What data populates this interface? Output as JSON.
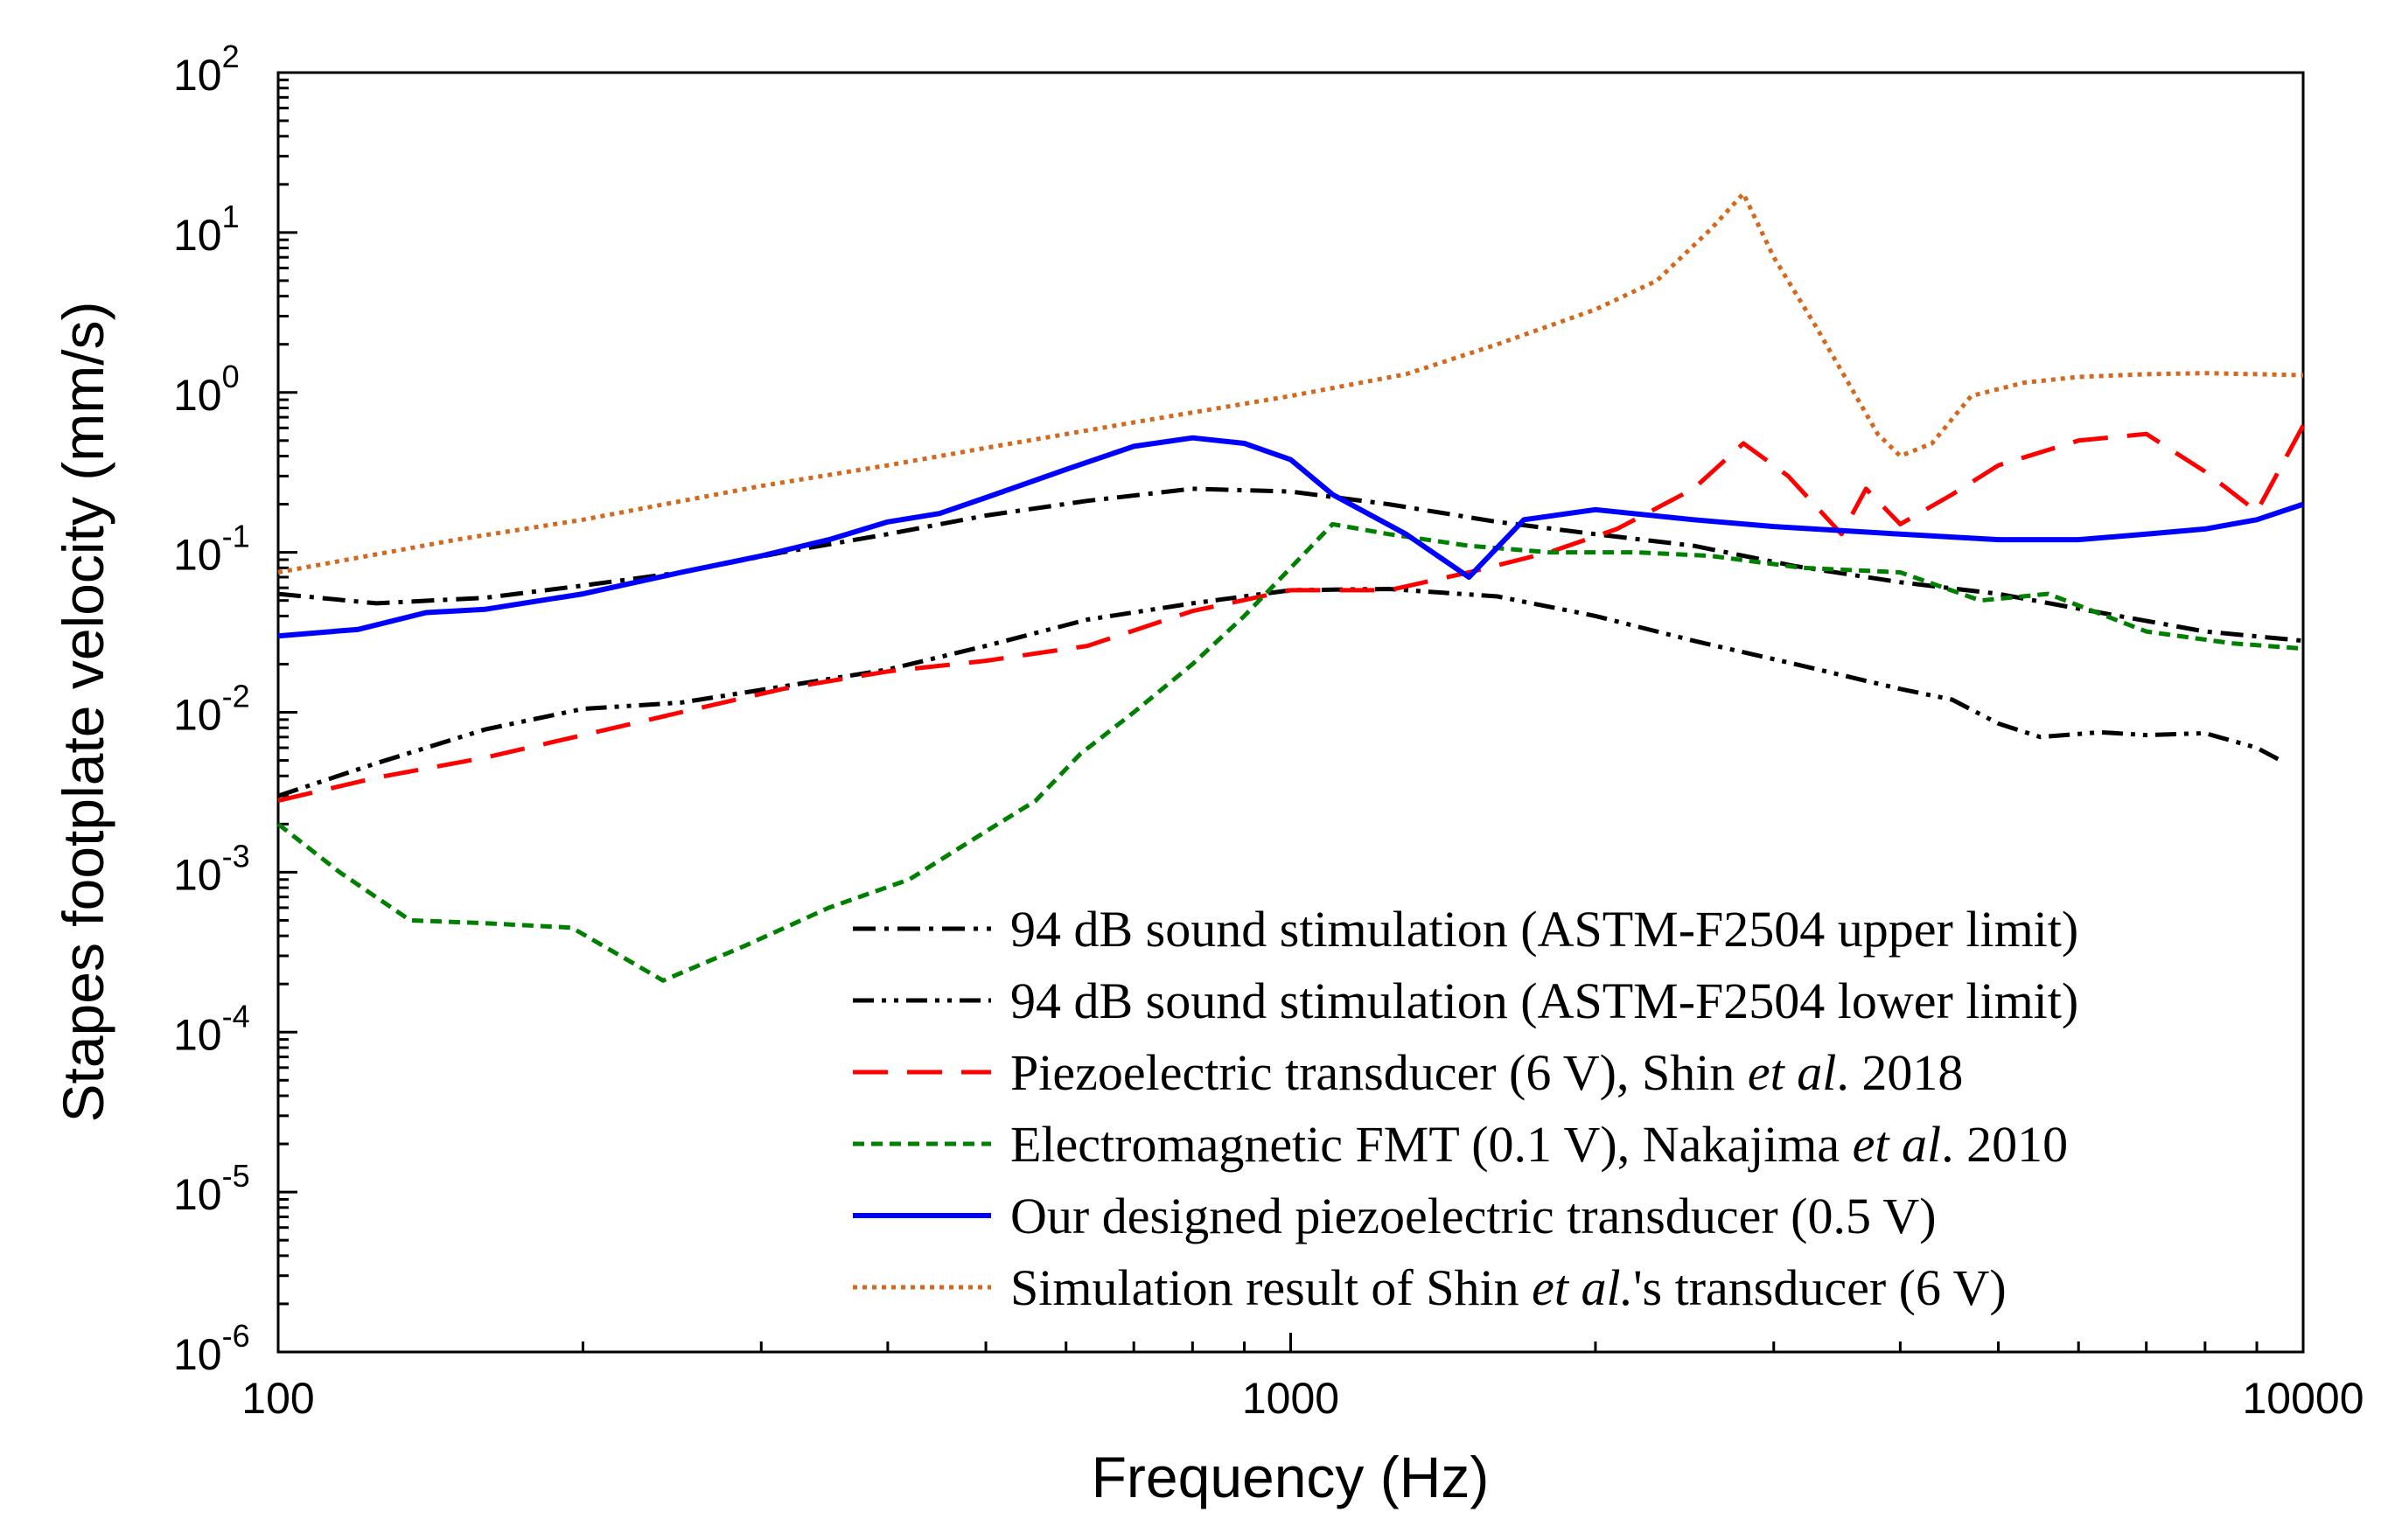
{
  "chart_data": {
    "type": "line",
    "title": "",
    "xlabel": "Frequency (Hz)",
    "ylabel": "Stapes footplate velocity (mm/s)",
    "x_scale": "log",
    "y_scale": "log",
    "xlim": [
      100,
      10000
    ],
    "ylim": [
      1e-06,
      100
    ],
    "x_ticks": [
      {
        "value": 100,
        "label": "100"
      },
      {
        "value": 1000,
        "label": "1000"
      },
      {
        "value": 10000,
        "label": "10000"
      }
    ],
    "y_ticks": [
      {
        "value": 100,
        "base": "10",
        "exp": "2"
      },
      {
        "value": 10,
        "base": "10",
        "exp": "1"
      },
      {
        "value": 1,
        "base": "10",
        "exp": "0"
      },
      {
        "value": 0.1,
        "base": "10",
        "exp": "-1"
      },
      {
        "value": 0.01,
        "base": "10",
        "exp": "-2"
      },
      {
        "value": 0.001,
        "base": "10",
        "exp": "-3"
      },
      {
        "value": 0.0001,
        "base": "10",
        "exp": "-4"
      },
      {
        "value": 1e-05,
        "base": "10",
        "exp": "-5"
      },
      {
        "value": 1e-06,
        "base": "10",
        "exp": "-6"
      }
    ],
    "grid": false,
    "legend_position": "bottom-right",
    "series": [
      {
        "name": "94 dB sound stimulation (ASTM-F2504 upper limit)",
        "legend": [
          {
            "t": "94 dB sound stimulation (ASTM-F2504 upper limit)",
            "i": false
          }
        ],
        "color": "#000000",
        "dash": "dashdot",
        "x": [
          100,
          125,
          160,
          200,
          250,
          315,
          400,
          500,
          630,
          800,
          1000,
          1250,
          1600,
          2000,
          2500,
          3150,
          4000,
          5000,
          6300,
          8000,
          10000
        ],
        "y": [
          0.055,
          0.048,
          0.052,
          0.062,
          0.075,
          0.1,
          0.13,
          0.17,
          0.21,
          0.25,
          0.24,
          0.2,
          0.155,
          0.13,
          0.11,
          0.082,
          0.065,
          0.055,
          0.042,
          0.032,
          0.028
        ]
      },
      {
        "name": "94 dB sound stimulation (ASTM-F2504 lower limit)",
        "legend": [
          {
            "t": "94 dB sound stimulation (ASTM-F2504 lower limit)",
            "i": false
          }
        ],
        "color": "#000000",
        "dash": "dashdotdot",
        "x": [
          100,
          125,
          160,
          200,
          250,
          315,
          400,
          500,
          630,
          800,
          1000,
          1250,
          1600,
          2000,
          2500,
          3150,
          4000,
          4500,
          5000,
          5500,
          6300,
          7000,
          8000,
          9000,
          9500
        ],
        "y": [
          0.003,
          0.0048,
          0.0078,
          0.0105,
          0.0115,
          0.0145,
          0.0185,
          0.026,
          0.038,
          0.048,
          0.058,
          0.059,
          0.053,
          0.04,
          0.028,
          0.02,
          0.014,
          0.012,
          0.0085,
          0.007,
          0.0075,
          0.0072,
          0.0074,
          0.006,
          0.005
        ]
      },
      {
        "name": "Piezoelectric transducer (6 V), Shin et al. 2018",
        "legend": [
          {
            "t": "Piezoelectric transducer (6 V), Shin ",
            "i": false
          },
          {
            "t": "et al",
            "i": true
          },
          {
            "t": ". 2018",
            "i": false
          }
        ],
        "color": "#ff0000",
        "dash": "dashed",
        "x": [
          100,
          125,
          160,
          200,
          250,
          315,
          400,
          500,
          630,
          800,
          1000,
          1250,
          1500,
          1800,
          2100,
          2500,
          2800,
          3100,
          3500,
          3700,
          4000,
          4500,
          5000,
          6000,
          7000,
          8000,
          9000,
          10000
        ],
        "y": [
          0.0028,
          0.0039,
          0.0052,
          0.0072,
          0.01,
          0.014,
          0.018,
          0.021,
          0.026,
          0.043,
          0.058,
          0.058,
          0.075,
          0.1,
          0.14,
          0.25,
          0.48,
          0.3,
          0.13,
          0.25,
          0.15,
          0.23,
          0.35,
          0.5,
          0.55,
          0.32,
          0.18,
          0.62
        ]
      },
      {
        "name": "Electromagnetic FMT (0.1 V), Nakajima et al. 2010",
        "legend": [
          {
            "t": "Electromagnetic FMT (0.1 V), Nakajima ",
            "i": false
          },
          {
            "t": "et al",
            "i": true
          },
          {
            "t": ". 2010",
            "i": false
          }
        ],
        "color": "#008000",
        "dash": "dotted-short",
        "x": [
          100,
          115,
          135,
          160,
          195,
          240,
          290,
          350,
          420,
          500,
          560,
          620,
          700,
          800,
          900,
          1000,
          1100,
          1250,
          1500,
          1800,
          2200,
          2600,
          3200,
          4000,
          4800,
          5600,
          7000,
          8500,
          10000
        ],
        "y": [
          0.002,
          0.001,
          0.0005,
          0.00048,
          0.00045,
          0.00021,
          0.00035,
          0.0006,
          0.0009,
          0.0018,
          0.0028,
          0.0055,
          0.01,
          0.02,
          0.04,
          0.08,
          0.15,
          0.13,
          0.11,
          0.1,
          0.1,
          0.095,
          0.08,
          0.075,
          0.05,
          0.055,
          0.032,
          0.027,
          0.025
        ]
      },
      {
        "name": "Our designed piezoelectric transducer (0.5 V)",
        "legend": [
          {
            "t": "Our designed piezoelectric transducer (0.5 V)",
            "i": false
          }
        ],
        "color": "#0000ff",
        "dash": "solid",
        "x": [
          100,
          120,
          140,
          160,
          200,
          250,
          300,
          350,
          400,
          450,
          500,
          600,
          700,
          800,
          900,
          1000,
          1100,
          1300,
          1500,
          1700,
          2000,
          2500,
          3000,
          4000,
          5000,
          6000,
          7000,
          8000,
          9000,
          10000
        ],
        "y": [
          0.03,
          0.033,
          0.042,
          0.044,
          0.055,
          0.075,
          0.095,
          0.12,
          0.155,
          0.175,
          0.22,
          0.33,
          0.46,
          0.52,
          0.48,
          0.38,
          0.23,
          0.13,
          0.07,
          0.16,
          0.185,
          0.16,
          0.145,
          0.13,
          0.12,
          0.12,
          0.13,
          0.14,
          0.16,
          0.2
        ]
      },
      {
        "name": "Simulation result of Shin et al.'s transducer (6 V)",
        "legend": [
          {
            "t": "Simulation result of Shin ",
            "i": false
          },
          {
            "t": "et al.",
            "i": true
          },
          {
            "t": "'s transducer (6 V)",
            "i": false
          }
        ],
        "color": "#d2691e",
        "dash": "dotted",
        "x": [
          100,
          150,
          200,
          300,
          400,
          500,
          700,
          1000,
          1300,
          1600,
          2000,
          2300,
          2600,
          2800,
          3000,
          3300,
          3600,
          3800,
          4000,
          4300,
          4700,
          5300,
          6000,
          7000,
          8000,
          9000,
          10000
        ],
        "y": [
          0.075,
          0.12,
          0.16,
          0.26,
          0.35,
          0.45,
          0.65,
          0.95,
          1.3,
          2.0,
          3.3,
          5.0,
          10.5,
          17.5,
          7.0,
          2.6,
          1.0,
          0.55,
          0.4,
          0.48,
          0.95,
          1.15,
          1.25,
          1.3,
          1.32,
          1.3,
          1.28
        ]
      }
    ]
  }
}
